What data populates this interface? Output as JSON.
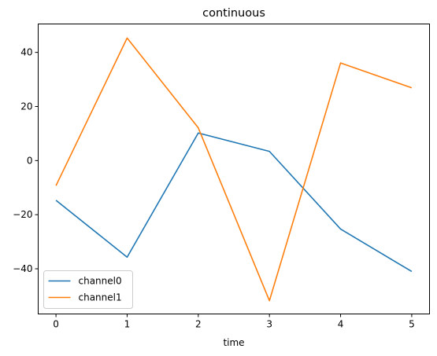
{
  "chart_data": {
    "type": "line",
    "title": "continuous",
    "xlabel": "time",
    "ylabel": "",
    "x": [
      0,
      1,
      2,
      3,
      4,
      5
    ],
    "xticks": [
      0,
      1,
      2,
      3,
      4,
      5
    ],
    "yticks": [
      -40,
      -20,
      0,
      20,
      40
    ],
    "xlim": [
      -0.25,
      5.25
    ],
    "ylim": [
      -56.7,
      50.5
    ],
    "grid": false,
    "legend_position": "lower-left",
    "series": [
      {
        "name": "channel0",
        "color": "#1f77b4",
        "values": [
          -14.7,
          -35.7,
          10.2,
          3.4,
          -25.3,
          -41.0
        ]
      },
      {
        "name": "channel1",
        "color": "#ff7f0e",
        "values": [
          -9.3,
          45.3,
          12.1,
          -51.8,
          36.1,
          26.9
        ]
      }
    ]
  }
}
